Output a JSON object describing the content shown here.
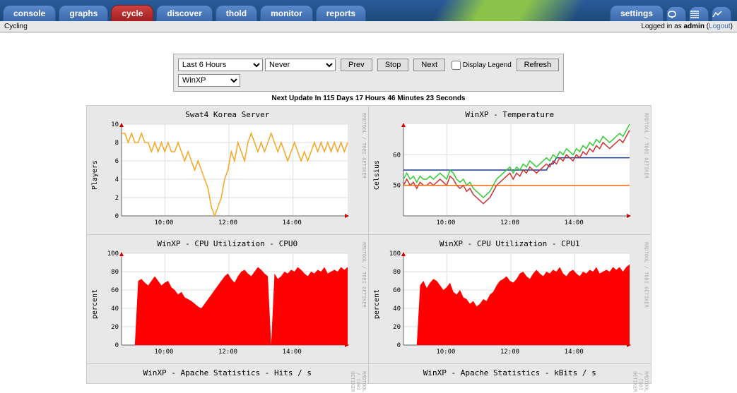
{
  "tabs": {
    "left": [
      "console",
      "graphs",
      "cycle",
      "discover",
      "thold",
      "monitor",
      "reports"
    ],
    "active": "cycle",
    "right_label": "settings"
  },
  "subbar": {
    "left": "Cycling",
    "right_prefix": "Logged in as ",
    "user": "admin",
    "logout": "Logout"
  },
  "controls": {
    "timespan": "Last 6 Hours",
    "refresh_interval": "Never",
    "prev": "Prev",
    "stop": "Stop",
    "next": "Next",
    "legend_label": "Display Legend",
    "refresh": "Refresh",
    "host": "WinXP"
  },
  "update_text": "Next Update In 115 Days 17 Hours 46 Minutes 23 Seconds",
  "watermark": "RRDTOOL / TOBI OETIKER",
  "charts": {
    "x_ticks": [
      "10:00",
      "12:00",
      "14:00"
    ],
    "grid_color": "#dddddd",
    "axis_color": "#666666",
    "arrow_color": "#cc0000",
    "swat": {
      "title": "Swat4 Korea Server",
      "ylabel": "Players",
      "ylim": [
        0,
        10
      ],
      "ytick_step": 2,
      "color": "#f5a623",
      "data": [
        9,
        9,
        8,
        9,
        8,
        8,
        9,
        8,
        8,
        7,
        8,
        7,
        8,
        7,
        8,
        7,
        7,
        8,
        7,
        6,
        7,
        6,
        5,
        6,
        5,
        4,
        3,
        1,
        0,
        1,
        2,
        4,
        5,
        7,
        6,
        8,
        7,
        6,
        8,
        9,
        8,
        7,
        8,
        7,
        8,
        9,
        8,
        7,
        8,
        7,
        6,
        7,
        8,
        7,
        6,
        7,
        6,
        7,
        8,
        7,
        8,
        7,
        8,
        7,
        8,
        7,
        8,
        7,
        8
      ]
    },
    "temp": {
      "title": "WinXP - Temperature",
      "ylabel": "Celsius",
      "ylim": [
        40,
        70
      ],
      "yticks": [
        50,
        60
      ],
      "series": [
        {
          "color": "#1a3a9a",
          "data": [
            55,
            55,
            55,
            55,
            55,
            55,
            55,
            55,
            55,
            55,
            55,
            55,
            55,
            55,
            55,
            55,
            55,
            55,
            55,
            55,
            55,
            55,
            55,
            55,
            55,
            55,
            55,
            55,
            55,
            55,
            55,
            55,
            55,
            55,
            55,
            55,
            55,
            55,
            55,
            55,
            55,
            55,
            55,
            55,
            57,
            57,
            59,
            59,
            59,
            59,
            59,
            59,
            59,
            59,
            59,
            59,
            59,
            59,
            59,
            59,
            59,
            59,
            59,
            59,
            59,
            59,
            59,
            59,
            59
          ]
        },
        {
          "color": "#cc3333",
          "data": [
            50,
            52,
            50,
            51,
            49,
            51,
            50,
            50,
            51,
            50,
            51,
            52,
            51,
            50,
            53,
            52,
            50,
            49,
            50,
            48,
            49,
            47,
            46,
            45,
            44,
            45,
            46,
            48,
            50,
            51,
            52,
            53,
            54,
            52,
            54,
            53,
            55,
            54,
            56,
            55,
            54,
            55,
            56,
            57,
            56,
            58,
            57,
            59,
            58,
            60,
            59,
            58,
            60,
            59,
            61,
            60,
            62,
            61,
            63,
            62,
            64,
            63,
            62,
            63,
            64,
            65,
            64,
            66,
            68
          ]
        },
        {
          "color": "#33cc33",
          "data": [
            52,
            54,
            52,
            53,
            51,
            53,
            52,
            52,
            53,
            52,
            53,
            54,
            53,
            52,
            55,
            54,
            52,
            51,
            52,
            50,
            51,
            49,
            48,
            47,
            46,
            47,
            48,
            50,
            52,
            53,
            54,
            55,
            56,
            54,
            56,
            55,
            57,
            56,
            58,
            57,
            56,
            57,
            58,
            59,
            58,
            60,
            59,
            61,
            60,
            62,
            61,
            60,
            62,
            61,
            63,
            62,
            64,
            63,
            65,
            64,
            66,
            65,
            64,
            65,
            66,
            67,
            66,
            68,
            70
          ]
        },
        {
          "color": "#ff6600",
          "data": [
            50,
            50,
            50,
            50,
            50,
            50,
            50,
            50,
            50,
            50,
            50,
            50,
            50,
            50,
            50,
            50,
            50,
            50,
            50,
            50,
            50,
            50,
            50,
            50,
            50,
            50,
            50,
            50,
            50,
            50,
            50,
            50,
            50,
            50,
            50,
            50,
            50,
            50,
            50,
            50,
            50,
            50,
            50,
            50,
            50,
            50,
            50,
            50,
            50,
            50,
            50,
            50,
            50,
            50,
            50,
            50,
            50,
            50,
            50,
            50,
            50,
            50,
            50,
            50,
            50,
            50,
            50,
            50,
            50
          ]
        }
      ]
    },
    "cpu0": {
      "title": "WinXP - CPU Utilization - CPU0",
      "ylabel": "percent",
      "ylim": [
        0,
        100
      ],
      "ytick_step": 20,
      "color": "#ff0000",
      "data": [
        0,
        0,
        0,
        0,
        0,
        70,
        72,
        68,
        65,
        70,
        75,
        70,
        65,
        68,
        70,
        63,
        60,
        55,
        58,
        52,
        50,
        48,
        45,
        42,
        40,
        45,
        50,
        55,
        60,
        65,
        70,
        75,
        78,
        72,
        68,
        75,
        80,
        82,
        78,
        75,
        80,
        85,
        82,
        78,
        75,
        0,
        78,
        72,
        75,
        80,
        78,
        82,
        80,
        85,
        82,
        78,
        75,
        80,
        78,
        82,
        80,
        85,
        78,
        80,
        82,
        80,
        85,
        82,
        85
      ]
    },
    "cpu1": {
      "title": "WinXP - CPU Utilization - CPU1",
      "ylabel": "percent",
      "ylim": [
        0,
        100
      ],
      "ytick_step": 20,
      "color": "#ff0000",
      "data": [
        0,
        0,
        0,
        0,
        0,
        65,
        70,
        62,
        68,
        72,
        70,
        65,
        60,
        63,
        68,
        58,
        55,
        60,
        52,
        50,
        45,
        48,
        42,
        45,
        50,
        48,
        55,
        58,
        65,
        70,
        72,
        75,
        70,
        68,
        72,
        78,
        80,
        75,
        72,
        78,
        82,
        78,
        75,
        80,
        78,
        82,
        80,
        85,
        78,
        75,
        80,
        82,
        78,
        75,
        80,
        78,
        82,
        80,
        85,
        78,
        80,
        82,
        80,
        85,
        82,
        85,
        80,
        85,
        88
      ]
    },
    "apache_hits": {
      "title": "WinXP - Apache Statistics - Hits / s"
    },
    "apache_kbits": {
      "title": "WinXP - Apache Statistics - kBits / s"
    }
  }
}
